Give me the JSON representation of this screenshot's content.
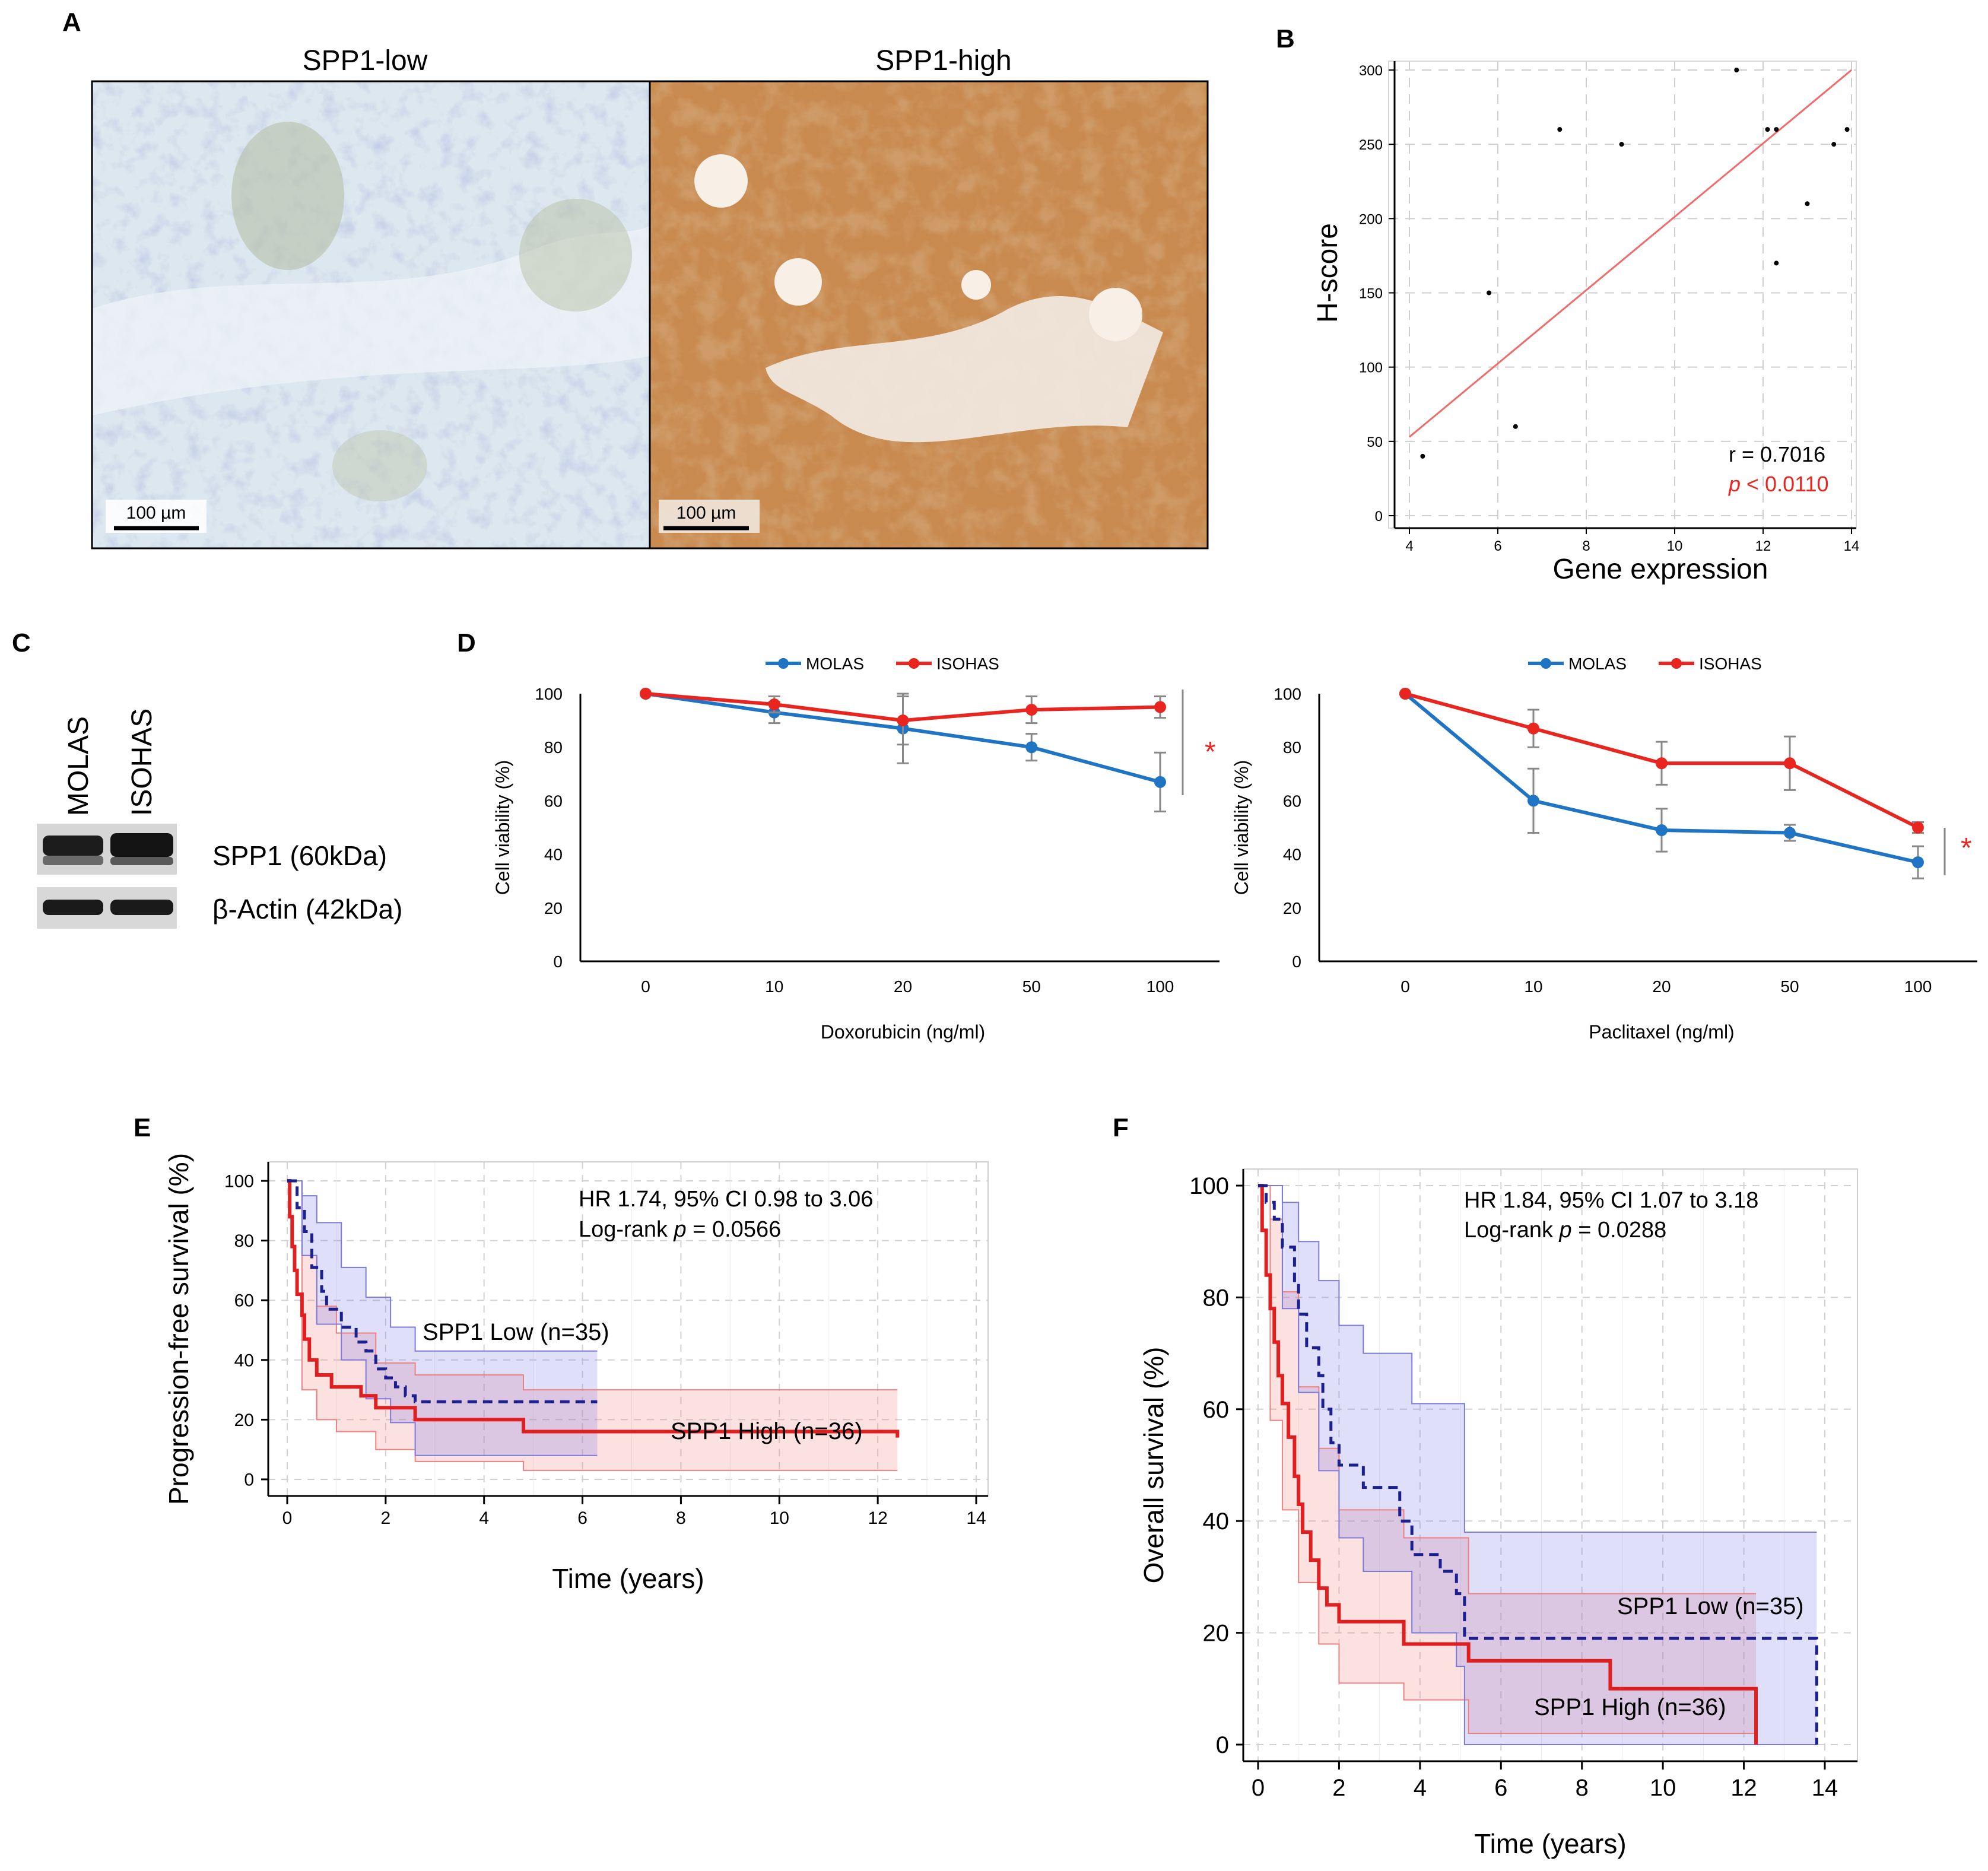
{
  "figure": {
    "panel_labels": {
      "a": "A",
      "b": "B",
      "c": "C",
      "d": "D",
      "e": "E",
      "f": "F"
    },
    "colors": {
      "red": "#e8251f",
      "blue": "#1f74c4",
      "navy": "#1c1f8e",
      "km_red": "#e02020",
      "grid": "#c8c8c8"
    }
  },
  "panel_a": {
    "low_title": "SPP1-low",
    "high_title": "SPP1-high",
    "scale_bar": "100 µm",
    "stain_low": "light blue hematoxylin",
    "stain_high": "brown DAB"
  },
  "panel_b": {
    "stats_r": "r = 0.7016",
    "stats_p_italic": "p",
    "stats_p_rest": " < 0.0110"
  },
  "panel_c": {
    "lanes": [
      "MOLAS",
      "ISOHAS"
    ],
    "bands": [
      "SPP1 (60kDa)",
      "β-Actin (42kDa)"
    ]
  },
  "panel_d": {
    "significance": "*"
  },
  "panel_e": {
    "hr_text": "HR 1.74, 95% CI 0.98 to 3.06",
    "logrank_prefix": "Log-rank ",
    "logrank_p": "p",
    "logrank_value": " = 0.0566"
  },
  "panel_f": {
    "hr_text": "HR 1.84, 95% CI 1.07 to 3.18",
    "logrank_prefix": "Log-rank ",
    "logrank_p": "p",
    "logrank_value": " = 0.0288"
  },
  "chart_data": [
    {
      "id": "B",
      "type": "scatter",
      "title": "",
      "xlabel": "Gene expression",
      "ylabel": "H-score",
      "xlim": [
        4,
        14
      ],
      "ylim": [
        0,
        300
      ],
      "xticks": [
        4,
        6,
        8,
        10,
        12,
        14
      ],
      "yticks": [
        0,
        50,
        100,
        150,
        200,
        250,
        300
      ],
      "grid": true,
      "points": [
        [
          4.3,
          40
        ],
        [
          5.8,
          150
        ],
        [
          6.4,
          60
        ],
        [
          7.4,
          260
        ],
        [
          8.8,
          250
        ],
        [
          11.4,
          300
        ],
        [
          12.1,
          260
        ],
        [
          12.3,
          260
        ],
        [
          12.3,
          170
        ],
        [
          13.0,
          210
        ],
        [
          13.6,
          250
        ],
        [
          13.9,
          260
        ]
      ],
      "fit_line": [
        [
          4,
          53
        ],
        [
          14,
          300
        ]
      ]
    },
    {
      "id": "D-left",
      "type": "line",
      "xlabel": "Doxorubicin (ng/ml)",
      "ylabel": "Cell viability (%)",
      "categories": [
        "0",
        "10",
        "20",
        "50",
        "100"
      ],
      "ylim": [
        0,
        100
      ],
      "yticks": [
        0,
        20,
        40,
        60,
        80,
        100
      ],
      "legend": "top-center",
      "series": [
        {
          "name": "MOLAS",
          "color": "#1f74c4",
          "values": [
            100,
            93,
            87,
            80,
            67
          ],
          "errors": [
            0,
            4,
            13,
            5,
            11
          ]
        },
        {
          "name": "ISOHAS",
          "color": "#e8251f",
          "values": [
            100,
            96,
            90,
            94,
            95
          ],
          "errors": [
            0,
            3,
            9,
            5,
            4
          ]
        }
      ]
    },
    {
      "id": "D-right",
      "type": "line",
      "xlabel": "Paclitaxel (ng/ml)",
      "ylabel": "Cell viability (%)",
      "categories": [
        "0",
        "10",
        "20",
        "50",
        "100"
      ],
      "ylim": [
        0,
        100
      ],
      "yticks": [
        0,
        20,
        40,
        60,
        80,
        100
      ],
      "legend": "top-center",
      "series": [
        {
          "name": "MOLAS",
          "color": "#1f74c4",
          "values": [
            100,
            60,
            49,
            48,
            37
          ],
          "errors": [
            0,
            12,
            8,
            3,
            6
          ]
        },
        {
          "name": "ISOHAS",
          "color": "#e8251f",
          "values": [
            100,
            87,
            74,
            74,
            50
          ],
          "errors": [
            0,
            7,
            8,
            10,
            2
          ]
        }
      ]
    },
    {
      "id": "E",
      "type": "line",
      "subtype": "kaplan-meier",
      "xlabel": "Time (years)",
      "ylabel": "Progression-free survival (%)",
      "xlim": [
        0,
        14
      ],
      "ylim": [
        0,
        100
      ],
      "xticks": [
        0,
        2,
        4,
        6,
        8,
        10,
        12,
        14
      ],
      "yticks": [
        0,
        20,
        40,
        60,
        80,
        100
      ],
      "grid": true,
      "series": [
        {
          "name": "SPP1 Low (n=35)",
          "style": "dashed",
          "color": "#1c1f8e",
          "steps": [
            [
              0,
              100
            ],
            [
              0.2,
              91
            ],
            [
              0.35,
              83
            ],
            [
              0.5,
              71
            ],
            [
              0.7,
              63
            ],
            [
              0.8,
              57
            ],
            [
              1.1,
              51
            ],
            [
              1.4,
              46
            ],
            [
              1.6,
              43
            ],
            [
              1.8,
              37
            ],
            [
              2.0,
              34
            ],
            [
              2.2,
              31
            ],
            [
              2.4,
              28
            ],
            [
              2.6,
              26
            ],
            [
              6.3,
              26
            ]
          ],
          "ci_upper": [
            [
              0,
              100
            ],
            [
              0.3,
              95
            ],
            [
              0.6,
              86
            ],
            [
              1.1,
              71
            ],
            [
              1.6,
              61
            ],
            [
              2.1,
              51
            ],
            [
              2.6,
              43
            ],
            [
              6.3,
              43
            ]
          ],
          "ci_lower": [
            [
              0,
              100
            ],
            [
              0.3,
              75
            ],
            [
              0.6,
              52
            ],
            [
              1.1,
              40
            ],
            [
              1.6,
              27
            ],
            [
              2.1,
              19
            ],
            [
              2.6,
              8
            ],
            [
              6.3,
              8
            ]
          ]
        },
        {
          "name": "SPP1 High (n=36)",
          "style": "solid",
          "color": "#e02020",
          "steps": [
            [
              0,
              100
            ],
            [
              0.05,
              88
            ],
            [
              0.1,
              78
            ],
            [
              0.15,
              70
            ],
            [
              0.2,
              62
            ],
            [
              0.3,
              55
            ],
            [
              0.35,
              47
            ],
            [
              0.45,
              40
            ],
            [
              0.6,
              35
            ],
            [
              0.9,
              31
            ],
            [
              1.5,
              28
            ],
            [
              1.8,
              24
            ],
            [
              2.6,
              20
            ],
            [
              4.8,
              16
            ],
            [
              12.4,
              16
            ],
            [
              12.4,
              14
            ]
          ],
          "ci_upper": [
            [
              0,
              100
            ],
            [
              0.3,
              75
            ],
            [
              0.6,
              58
            ],
            [
              1.0,
              49
            ],
            [
              1.8,
              39
            ],
            [
              2.6,
              35
            ],
            [
              4.8,
              30
            ],
            [
              12.4,
              30
            ]
          ],
          "ci_lower": [
            [
              0,
              100
            ],
            [
              0.3,
              30
            ],
            [
              0.6,
              20
            ],
            [
              1.0,
              16
            ],
            [
              1.8,
              10
            ],
            [
              2.6,
              6
            ],
            [
              4.8,
              3
            ],
            [
              12.4,
              3
            ]
          ]
        }
      ],
      "labels": [
        "SPP1 Low (n=35)",
        "SPP1 High (n=36)"
      ]
    },
    {
      "id": "F",
      "type": "line",
      "subtype": "kaplan-meier",
      "xlabel": "Time (years)",
      "ylabel": "Overall survival (%)",
      "xlim": [
        0,
        14
      ],
      "ylim": [
        0,
        100
      ],
      "xticks": [
        0,
        2,
        4,
        6,
        8,
        10,
        12,
        14
      ],
      "yticks": [
        0,
        20,
        40,
        60,
        80,
        100
      ],
      "grid": true,
      "series": [
        {
          "name": "SPP1 Low (n=35)",
          "style": "dashed",
          "color": "#1c1f8e",
          "steps": [
            [
              0,
              100
            ],
            [
              0.2,
              97
            ],
            [
              0.4,
              94
            ],
            [
              0.6,
              89
            ],
            [
              0.9,
              83
            ],
            [
              1.0,
              77
            ],
            [
              1.2,
              71
            ],
            [
              1.5,
              66
            ],
            [
              1.6,
              60
            ],
            [
              1.8,
              54
            ],
            [
              2.0,
              50
            ],
            [
              2.6,
              46
            ],
            [
              3.5,
              40
            ],
            [
              3.8,
              34
            ],
            [
              4.5,
              31
            ],
            [
              4.9,
              27
            ],
            [
              5.1,
              19
            ],
            [
              13.8,
              19
            ],
            [
              13.8,
              0
            ]
          ],
          "ci_upper": [
            [
              0,
              100
            ],
            [
              0.6,
              97
            ],
            [
              1.0,
              90
            ],
            [
              1.5,
              83
            ],
            [
              2.0,
              75
            ],
            [
              2.6,
              70
            ],
            [
              3.8,
              61
            ],
            [
              5.1,
              38
            ],
            [
              13.8,
              38
            ]
          ],
          "ci_lower": [
            [
              0,
              100
            ],
            [
              0.6,
              78
            ],
            [
              1.0,
              63
            ],
            [
              1.5,
              49
            ],
            [
              2.0,
              37
            ],
            [
              2.6,
              31
            ],
            [
              3.8,
              20
            ],
            [
              4.9,
              14
            ],
            [
              5.1,
              0
            ],
            [
              13.8,
              0
            ]
          ]
        },
        {
          "name": "SPP1 High (n=36)",
          "style": "solid",
          "color": "#e02020",
          "steps": [
            [
              0,
              100
            ],
            [
              0.1,
              92
            ],
            [
              0.2,
              84
            ],
            [
              0.3,
              78
            ],
            [
              0.4,
              72
            ],
            [
              0.5,
              66
            ],
            [
              0.6,
              61
            ],
            [
              0.75,
              55
            ],
            [
              0.9,
              48
            ],
            [
              1.0,
              43
            ],
            [
              1.1,
              38
            ],
            [
              1.3,
              33
            ],
            [
              1.5,
              28
            ],
            [
              1.7,
              25
            ],
            [
              2.0,
              22
            ],
            [
              3.6,
              18
            ],
            [
              5.2,
              15
            ],
            [
              8.7,
              10
            ],
            [
              12.3,
              10
            ],
            [
              12.3,
              0
            ]
          ],
          "ci_upper": [
            [
              0,
              100
            ],
            [
              0.3,
              94
            ],
            [
              0.6,
              81
            ],
            [
              1.0,
              64
            ],
            [
              1.5,
              53
            ],
            [
              2.0,
              42
            ],
            [
              3.6,
              37
            ],
            [
              5.2,
              27
            ],
            [
              12.3,
              27
            ]
          ],
          "ci_lower": [
            [
              0,
              100
            ],
            [
              0.3,
              58
            ],
            [
              0.6,
              42
            ],
            [
              1.0,
              29
            ],
            [
              1.5,
              18
            ],
            [
              2.0,
              11
            ],
            [
              3.6,
              8
            ],
            [
              5.2,
              2
            ],
            [
              12.3,
              2
            ]
          ]
        }
      ],
      "labels": [
        "SPP1 Low (n=35)",
        "SPP1 High (n=36)"
      ]
    }
  ]
}
